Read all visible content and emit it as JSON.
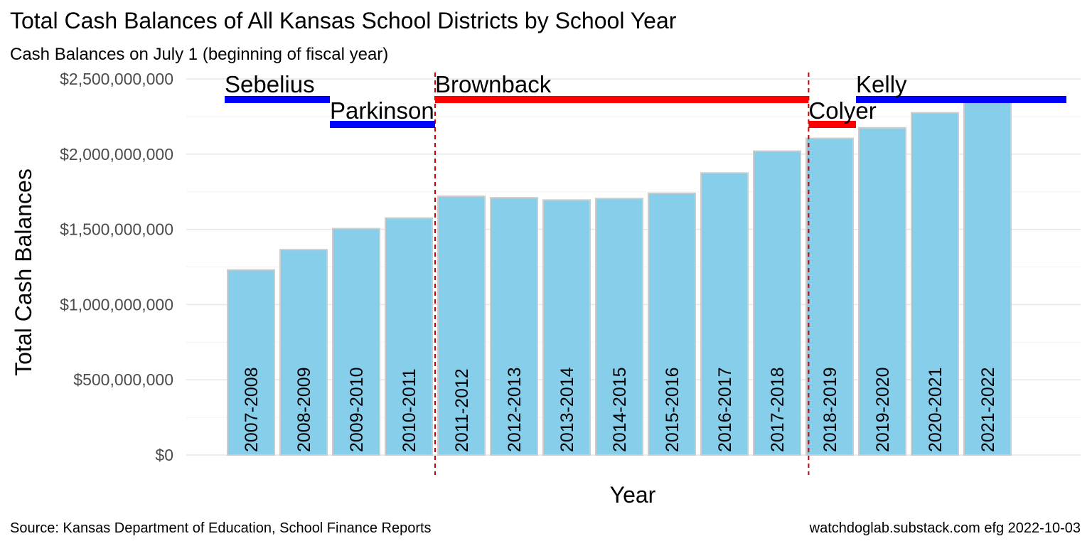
{
  "chart_data": {
    "type": "bar",
    "title": "Total Cash Balances of All Kansas School Districts by School Year",
    "subtitle": "Cash Balances on July 1 (beginning of fiscal year)",
    "xlabel": "Year",
    "ylabel": "Total Cash Balances",
    "ylim": [
      0,
      2500000000
    ],
    "y_ticks": [
      0,
      500000000,
      1000000000,
      1500000000,
      2000000000,
      2500000000
    ],
    "y_tick_labels": [
      "$0",
      "$500,000,000",
      "$1,000,000,000",
      "$1,500,000,000",
      "$2,000,000,000",
      "$2,500,000,000"
    ],
    "categories": [
      "2007-2008",
      "2008-2009",
      "2009-2010",
      "2010-2011",
      "2011-2012",
      "2012-2013",
      "2013-2014",
      "2014-2015",
      "2015-2016",
      "2016-2017",
      "2017-2018",
      "2018-2019",
      "2019-2020",
      "2020-2021",
      "2021-2022"
    ],
    "values": [
      1230000000,
      1365000000,
      1505000000,
      1575000000,
      1720000000,
      1710000000,
      1695000000,
      1705000000,
      1740000000,
      1875000000,
      2020000000,
      2105000000,
      2175000000,
      2275000000,
      2345000000
    ],
    "bar_color": "#87CEEB",
    "bar_outline_color": "#cccccc",
    "grid": true,
    "governors": [
      {
        "name": "Sebelius",
        "start": 2007.0,
        "end": 2009.0,
        "color": "#0000FF",
        "row": 0
      },
      {
        "name": "Parkinson",
        "start": 2009.0,
        "end": 2011.0,
        "color": "#0000FF",
        "row": 1
      },
      {
        "name": "Brownback",
        "start": 2011.0,
        "end": 2018.1,
        "color": "#FF0000",
        "row": 0
      },
      {
        "name": "Colyer",
        "start": 2018.1,
        "end": 2019.0,
        "color": "#FF0000",
        "row": 1
      },
      {
        "name": "Kelly",
        "start": 2019.0,
        "end": 2023.0,
        "color": "#0000FF",
        "row": 0
      }
    ],
    "vlines": [
      2011.0,
      2018.1
    ],
    "vline_color": "#CC0000"
  },
  "caption_left": "Source:  Kansas Department of Education, School Finance Reports",
  "caption_right": "watchdoglab.substack.com  efg 2022-10-03"
}
